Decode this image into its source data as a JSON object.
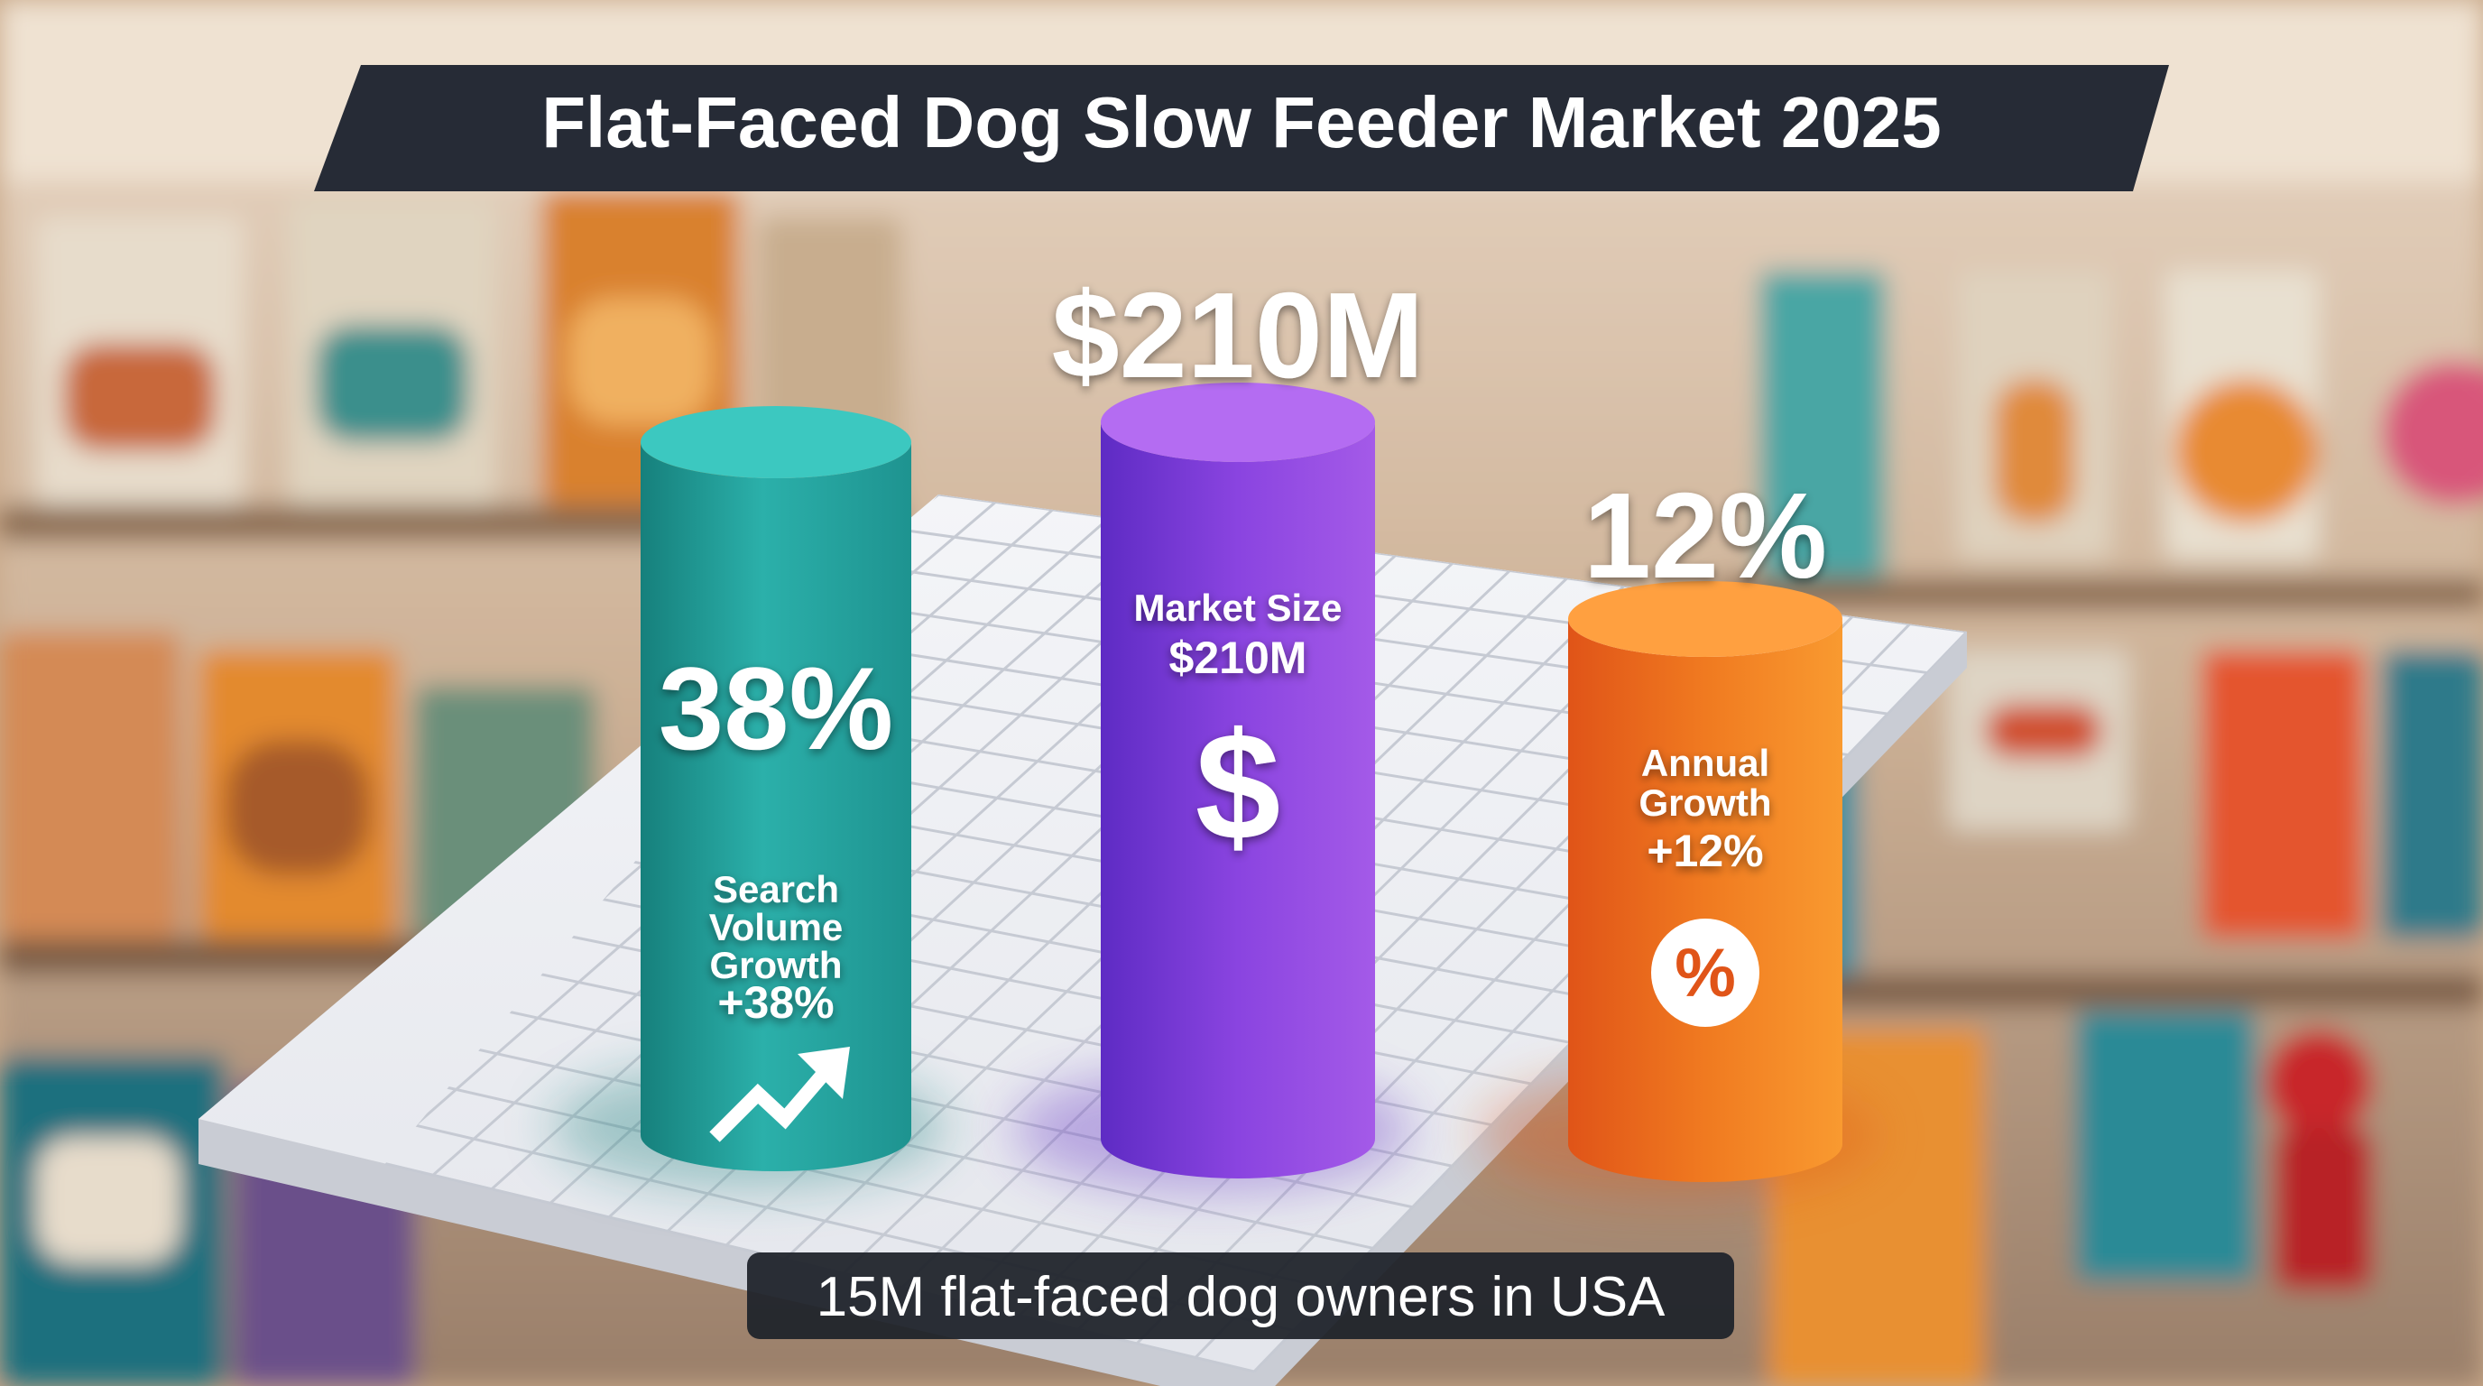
{
  "chart_data": {
    "type": "bar",
    "title": "Flat-Faced Dog Slow Feeder Market 2025",
    "caption": "15M flat-faced dog owners in USA",
    "series": [
      {
        "value_label": "38%",
        "label_lines": [
          "Search",
          "Volume",
          "Growth",
          "+38%"
        ],
        "icon": "trend-up-arrow-icon",
        "color_top": "#3cc8c0",
        "color_left": "#16807c",
        "color_mid": "#2bb0aa",
        "color_right": "#1e9390"
      },
      {
        "value_label": "$210M",
        "label_lines": [
          "Market Size",
          "$210M"
        ],
        "icon": "dollar-sign-icon",
        "color_top": "#b46cf2",
        "color_left": "#5e2bc4",
        "color_mid": "#8a44e0",
        "color_right": "#a45ae8"
      },
      {
        "value_label": "12%",
        "label_lines": [
          "Annual",
          "Growth",
          "+12%"
        ],
        "icon": "percent-badge-icon",
        "color_top": "#ffa040",
        "color_left": "#e05418",
        "color_mid": "#f07a20",
        "color_right": "#f99a30"
      }
    ]
  }
}
